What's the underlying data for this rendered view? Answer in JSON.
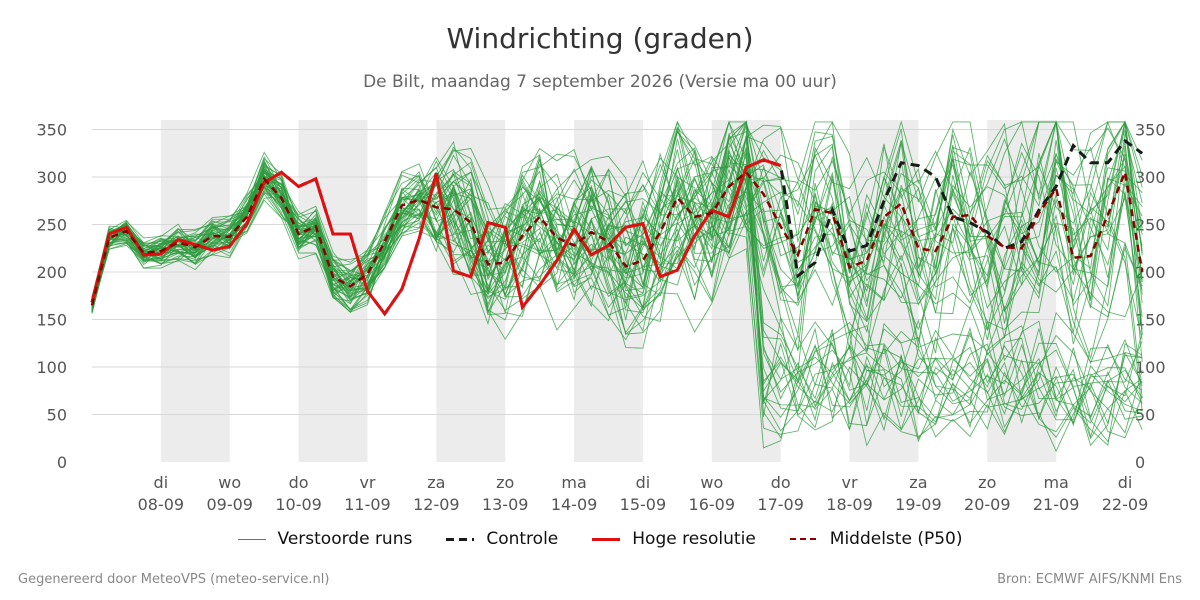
{
  "chart_data": {
    "type": "line",
    "title": "Windrichting (graden)",
    "subtitle": "De Bilt, maandag  7 september 2026 (Versie ma 00 uur)",
    "ylim": [
      0,
      360
    ],
    "yticks": [
      0,
      50,
      100,
      150,
      200,
      250,
      300,
      350
    ],
    "y_axis_both_sides": true,
    "grid": true,
    "legend_placement": "bottom-center",
    "x_start": "2026-09-07T00:00",
    "x_end": "2026-09-22T00:00",
    "x_step_hours": 6,
    "x_tick_labels": [
      {
        "day": "di",
        "date": "08-09"
      },
      {
        "day": "wo",
        "date": "09-09"
      },
      {
        "day": "do",
        "date": "10-09"
      },
      {
        "day": "vr",
        "date": "11-09"
      },
      {
        "day": "za",
        "date": "12-09"
      },
      {
        "day": "zo",
        "date": "13-09"
      },
      {
        "day": "ma",
        "date": "14-09"
      },
      {
        "day": "di",
        "date": "15-09"
      },
      {
        "day": "wo",
        "date": "16-09"
      },
      {
        "day": "do",
        "date": "17-09"
      },
      {
        "day": "vr",
        "date": "18-09"
      },
      {
        "day": "za",
        "date": "19-09"
      },
      {
        "day": "zo",
        "date": "20-09"
      },
      {
        "day": "ma",
        "date": "21-09"
      },
      {
        "day": "di",
        "date": "22-09"
      }
    ],
    "shaded_days": [
      "08-09",
      "10-09",
      "12-09",
      "14-09",
      "16-09",
      "18-09",
      "20-09"
    ],
    "colors": {
      "ensemble": "#2e9b3e",
      "control": "#1a1a1a",
      "hires": "#e01010",
      "median": "#8b0000",
      "shade": "#ececec",
      "grid": "#d8d8d8"
    },
    "series": [
      {
        "name": "Controle",
        "style": "dashed-black",
        "values": [
          168,
          240,
          247,
          218,
          219,
          234,
          229,
          223,
          227,
          251,
          294,
          305,
          290,
          298,
          240,
          240,
          180,
          156,
          182,
          235,
          304,
          201,
          195,
          252,
          247,
          163,
          186,
          212,
          245,
          218,
          228,
          247,
          251,
          195,
          202,
          238,
          265,
          258,
          310,
          318,
          312,
          196,
          210,
          265,
          222,
          228,
          275,
          315,
          312,
          300,
          258,
          252,
          242,
          225,
          232,
          265,
          290,
          333,
          315,
          315,
          338,
          325
        ]
      },
      {
        "name": "Hoge resolutie",
        "style": "solid-red",
        "values": [
          168,
          240,
          247,
          218,
          219,
          234,
          229,
          223,
          227,
          251,
          294,
          305,
          290,
          298,
          240,
          240,
          180,
          156,
          182,
          235,
          304,
          201,
          195,
          252,
          247,
          163,
          186,
          212,
          245,
          218,
          228,
          247,
          251,
          195,
          202,
          238,
          265,
          258,
          310,
          318,
          312
        ]
      },
      {
        "name": "Middelste (P50)",
        "style": "dashed-darkred",
        "values": [
          165,
          236,
          243,
          220,
          222,
          231,
          226,
          238,
          237,
          258,
          298,
          278,
          240,
          248,
          195,
          185,
          198,
          232,
          270,
          276,
          268,
          266,
          252,
          208,
          210,
          238,
          258,
          236,
          228,
          242,
          232,
          206,
          212,
          242,
          278,
          258,
          262,
          290,
          305,
          282,
          248,
          218,
          266,
          262,
          205,
          212,
          258,
          272,
          225,
          222,
          258,
          260,
          238,
          226,
          225,
          262,
          288,
          215,
          217,
          260,
          305,
          200
        ]
      },
      {
        "name": "Verstoorde runs",
        "style": "thin-green",
        "members": 50,
        "values": "~50 perturbed members scattered around the median, spreading over 0–360 after 12-09"
      }
    ]
  },
  "legend": [
    {
      "label": "Verstoorde runs",
      "key": "ensemble"
    },
    {
      "label": "Controle",
      "key": "control"
    },
    {
      "label": "Hoge resolutie",
      "key": "hires"
    },
    {
      "label": "Middelste (P50)",
      "key": "median"
    }
  ],
  "footer": {
    "left": "Gegenereerd door MeteoVPS (meteo-service.nl)",
    "right": "Bron: ECMWF AIFS/KNMI Ens"
  }
}
